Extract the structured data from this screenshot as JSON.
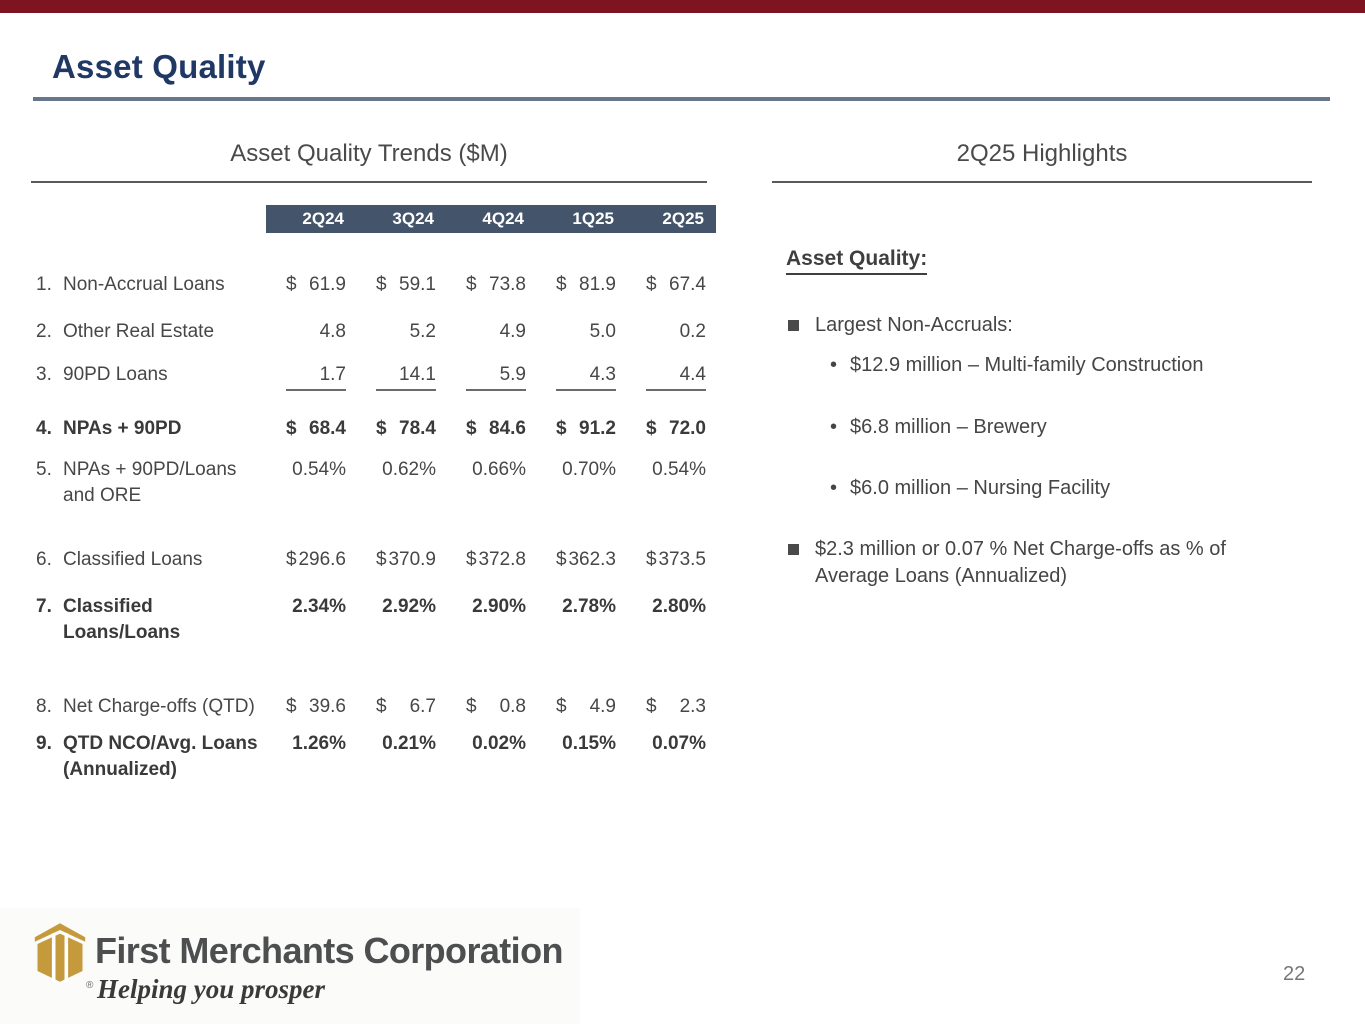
{
  "slide": {
    "title": "Asset Quality",
    "page_number": "22"
  },
  "table_section": {
    "title": "Asset Quality Trends ($M)",
    "columns": [
      "2Q24",
      "3Q24",
      "4Q24",
      "1Q25",
      "2Q25"
    ],
    "rows": [
      {
        "num": "1.",
        "label": "Non-Accrual Loans",
        "label2": "",
        "dollar": true,
        "bold": false,
        "underline": false,
        "values": [
          "61.9",
          "59.1",
          "73.8",
          "81.9",
          "67.4"
        ]
      },
      {
        "num": "2.",
        "label": "Other Real Estate",
        "label2": "",
        "dollar": false,
        "bold": false,
        "underline": false,
        "values": [
          "4.8",
          "5.2",
          "4.9",
          "5.0",
          "0.2"
        ]
      },
      {
        "num": "3.",
        "label": "90PD Loans",
        "label2": "",
        "dollar": false,
        "bold": false,
        "underline": true,
        "values": [
          "1.7",
          "14.1",
          "5.9",
          "4.3",
          "4.4"
        ]
      },
      {
        "num": "4.",
        "label": "NPAs + 90PD",
        "label2": "",
        "dollar": true,
        "bold": true,
        "underline": false,
        "values": [
          "68.4",
          "78.4",
          "84.6",
          "91.2",
          "72.0"
        ]
      },
      {
        "num": "5.",
        "label": "NPAs + 90PD/Loans",
        "label2": "and ORE",
        "dollar": false,
        "bold": false,
        "underline": false,
        "values": [
          "0.54%",
          "0.62%",
          "0.66%",
          "0.70%",
          "0.54%"
        ]
      },
      {
        "num": "6.",
        "label": "Classified Loans",
        "label2": "",
        "dollar": true,
        "bold": false,
        "underline": false,
        "values": [
          "296.6",
          "370.9",
          "372.8",
          "362.3",
          "373.5"
        ]
      },
      {
        "num": "7.",
        "label": "Classified Loans/Loans",
        "label2": "",
        "dollar": false,
        "bold": true,
        "underline": false,
        "values": [
          "2.34%",
          "2.92%",
          "2.90%",
          "2.78%",
          "2.80%"
        ]
      },
      {
        "num": "8.",
        "label": "Net Charge-offs (QTD)",
        "label2": "",
        "dollar": true,
        "bold": false,
        "underline": false,
        "values": [
          "39.6",
          "6.7",
          "0.8",
          "4.9",
          "2.3"
        ]
      },
      {
        "num": "9.",
        "label": "QTD NCO/Avg. Loans",
        "label2": "(Annualized)",
        "dollar": false,
        "bold": true,
        "underline": false,
        "values": [
          "1.26%",
          "0.21%",
          "0.02%",
          "0.15%",
          "0.07%"
        ]
      }
    ]
  },
  "highlights": {
    "title": "2Q25 Highlights",
    "heading": "Asset Quality:",
    "bullet1": "Largest Non-Accruals:",
    "sub_bullets": [
      "$12.9 million – Multi-family Construction",
      "$6.8 million – Brewery",
      "$6.0 million – Nursing Facility"
    ],
    "bullet2": "$2.3 million or 0.07 % Net Charge-offs as % of Average Loans (Annualized)"
  },
  "footer": {
    "company": "First Merchants Corporation",
    "tagline": "Helping you prosper",
    "registered_mark": "®",
    "page": "22"
  },
  "colors": {
    "top_bar_red": "#7d141f",
    "title_navy": "#1f3864",
    "rule_slate": "#68768c",
    "table_header_navy": "#44546a",
    "body_text_gray": "#474747",
    "logo_gold": "#c49a3c"
  }
}
